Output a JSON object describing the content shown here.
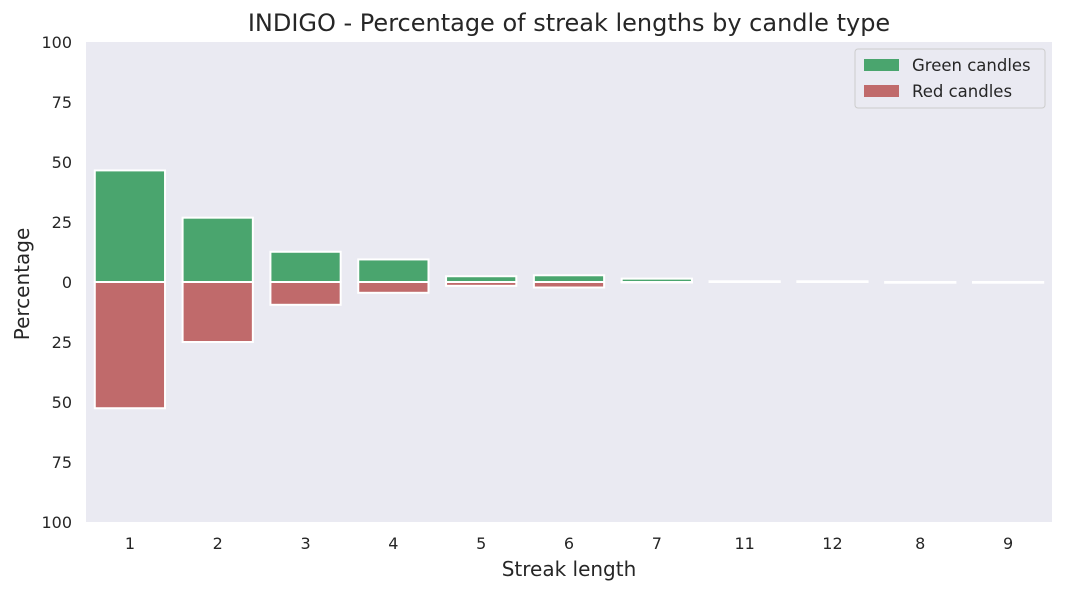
{
  "chart_data": {
    "type": "bar",
    "title": "INDIGO - Percentage of streak lengths by candle type",
    "xlabel": "Streak length",
    "ylabel": "Percentage",
    "categories": [
      "1",
      "2",
      "3",
      "4",
      "5",
      "6",
      "7",
      "11",
      "12",
      "8",
      "9"
    ],
    "series": [
      {
        "name": "Green candles",
        "color": "#4aa56e",
        "direction": "up",
        "values": [
          46.5,
          26.8,
          12.6,
          9.4,
          2.4,
          2.8,
          1.4,
          0.3,
          0.3,
          0.0,
          0.0
        ]
      },
      {
        "name": "Red candles",
        "color": "#c06a6b",
        "direction": "down",
        "values": [
          52.6,
          25.0,
          9.5,
          4.5,
          1.6,
          2.3,
          0.2,
          0.0,
          0.0,
          0.3,
          0.3
        ]
      }
    ],
    "ylim": [
      -100,
      100
    ],
    "yticks": [
      100,
      75,
      50,
      25,
      0,
      -25,
      -50,
      -75,
      -100
    ],
    "ytick_labels": [
      "100",
      "75",
      "50",
      "25",
      "0",
      "25",
      "50",
      "75",
      "100"
    ],
    "background": "#eaeaf2",
    "grid": false,
    "legend_position": "top-right"
  }
}
